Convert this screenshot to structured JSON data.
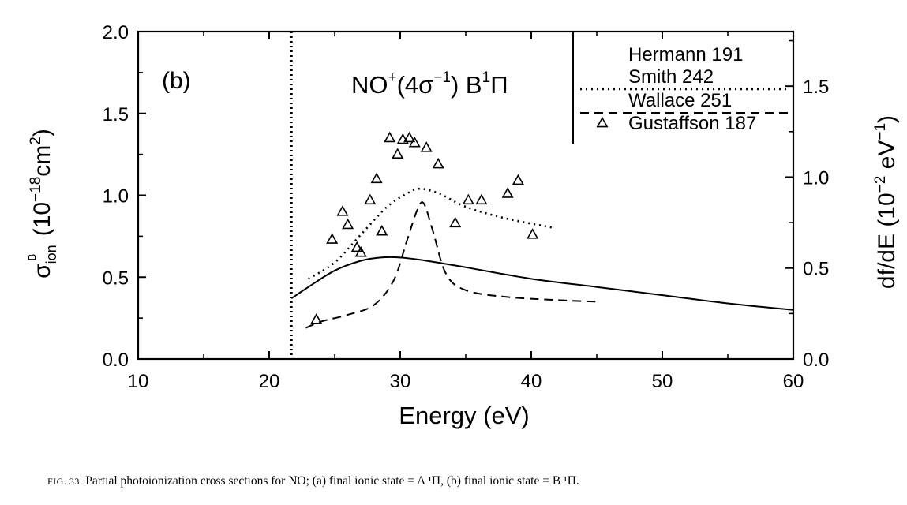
{
  "chart_data": {
    "type": "line",
    "panel_label": "(b)",
    "title": "NO⁺(4σ⁻¹) B¹Π",
    "title_parts": {
      "main": "NO",
      "sup1": "+",
      "paren_open": "(4σ",
      "sup2": "−1",
      "paren_close": ") B",
      "sup3": "1",
      "tail": "Π"
    },
    "xlabel": "Energy (eV)",
    "ylabel_left": {
      "sigma": "σ",
      "sub": "ion",
      "sup": "B",
      "unit": "(10",
      "exp": "−18",
      "unit2": "cm",
      "exp2": "2",
      "close": ")"
    },
    "ylabel_right": {
      "text": "df/dE (10",
      "exp1": "−2",
      "mid": "eV",
      "exp2": "−1",
      "close": ")"
    },
    "xlim": [
      10,
      60
    ],
    "ylim_left": [
      0,
      2.0
    ],
    "ylim_right": [
      0,
      1.8
    ],
    "xticks": [
      "10",
      "20",
      "30",
      "40",
      "50",
      "60"
    ],
    "yticks_left": [
      "0.0",
      "0.5",
      "1.0",
      "1.5",
      "2.0"
    ],
    "yticks_right": [
      "0.0",
      "0.5",
      "1.0",
      "1.5"
    ],
    "threshold_x": 21.7,
    "grid": false,
    "legend_position": "top-right",
    "legend": [
      "Hermann 191",
      "Smith 242",
      "Wallace 251",
      "Gustaffson 187"
    ],
    "series": [
      {
        "name": "Hermann 191",
        "style": "solid",
        "x": [
          21.7,
          23,
          25,
          27,
          28.5,
          30,
          32,
          35,
          40,
          45,
          50,
          55,
          60
        ],
        "y": [
          0.37,
          0.44,
          0.54,
          0.6,
          0.62,
          0.62,
          0.6,
          0.56,
          0.49,
          0.44,
          0.39,
          0.34,
          0.3
        ]
      },
      {
        "name": "Smith 242",
        "style": "dotted",
        "x": [
          23,
          25,
          27,
          29,
          30.5,
          31.5,
          33,
          35,
          38,
          41.8
        ],
        "y": [
          0.49,
          0.59,
          0.76,
          0.93,
          1.01,
          1.04,
          1.01,
          0.93,
          0.86,
          0.8
        ]
      },
      {
        "name": "Wallace 251",
        "style": "dashed",
        "x": [
          22.8,
          24,
          26,
          28,
          29.5,
          30.5,
          31.3,
          31.8,
          32.5,
          33.5,
          35,
          38,
          42,
          45
        ],
        "y": [
          0.19,
          0.23,
          0.27,
          0.33,
          0.48,
          0.72,
          0.91,
          0.95,
          0.78,
          0.52,
          0.42,
          0.38,
          0.36,
          0.35
        ]
      },
      {
        "name": "Gustaffson 187",
        "style": "triangle",
        "x": [
          23.6,
          24.8,
          25.6,
          26.0,
          26.7,
          27.0,
          27.7,
          28.2,
          28.6,
          29.2,
          29.8,
          30.2,
          30.7,
          31.1,
          32.0,
          32.9,
          34.2,
          35.2,
          36.2,
          38.2,
          39.0,
          40.1
        ],
        "y": [
          0.24,
          0.73,
          0.9,
          0.82,
          0.68,
          0.65,
          0.97,
          1.1,
          0.78,
          1.35,
          1.25,
          1.34,
          1.35,
          1.32,
          1.29,
          1.19,
          0.83,
          0.97,
          0.97,
          1.01,
          1.09,
          0.76
        ]
      }
    ]
  },
  "caption": {
    "fig": "FIG. 33.",
    "text": " Partial photoionization cross sections for NO; (a) final ionic state = A ¹Π, (b) final ionic state = B ¹Π."
  }
}
